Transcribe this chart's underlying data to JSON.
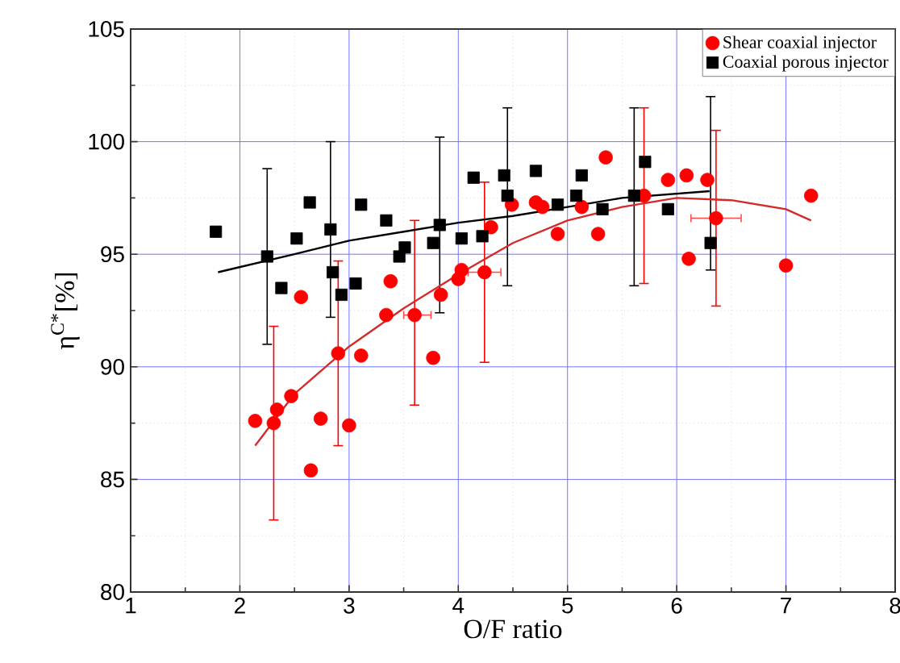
{
  "chart_data": {
    "type": "scatter",
    "xlabel": "O/F ratio",
    "ylabel": "η$^{C*}$[%]",
    "xlim": [
      1,
      8
    ],
    "ylim": [
      80,
      105
    ],
    "xticks": [
      1,
      2,
      3,
      4,
      5,
      6,
      7,
      8
    ],
    "yticks": [
      80,
      85,
      90,
      95,
      100,
      105
    ],
    "grid": true,
    "legend": "top right",
    "series": [
      {
        "name": "Shear coaxial injector",
        "marker": "circle",
        "color": "#ff0000",
        "x": [
          2.14,
          2.31,
          2.34,
          2.47,
          2.56,
          2.65,
          2.74,
          2.9,
          3.0,
          3.11,
          3.34,
          3.38,
          3.6,
          3.77,
          3.84,
          4.0,
          4.03,
          4.24,
          4.3,
          4.49,
          4.71,
          4.77,
          4.91,
          5.13,
          5.28,
          5.35,
          5.7,
          5.92,
          6.09,
          6.11,
          6.28,
          6.36,
          7.0,
          7.23
        ],
        "values": [
          87.6,
          87.5,
          88.1,
          88.7,
          93.1,
          85.4,
          87.7,
          90.6,
          87.4,
          90.5,
          92.3,
          93.8,
          92.3,
          90.4,
          93.2,
          93.9,
          94.3,
          94.2,
          96.2,
          97.2,
          97.3,
          97.1,
          95.9,
          97.1,
          95.9,
          99.3,
          97.6,
          98.3,
          98.5,
          94.8,
          98.3,
          96.6,
          94.5,
          97.6
        ],
        "errors": [
          null,
          [
            83.2,
            91.8
          ],
          null,
          null,
          null,
          null,
          null,
          [
            86.5,
            94.7
          ],
          null,
          null,
          null,
          null,
          [
            88.3,
            96.5
          ],
          null,
          null,
          null,
          null,
          [
            90.2,
            98.2
          ],
          null,
          null,
          null,
          null,
          null,
          null,
          null,
          null,
          [
            93.7,
            101.5
          ],
          null,
          null,
          null,
          null,
          [
            92.7,
            100.5
          ],
          null,
          null
        ],
        "xerrors": [
          null,
          null,
          null,
          null,
          null,
          null,
          null,
          null,
          null,
          null,
          null,
          null,
          [
            3.5,
            3.75
          ],
          null,
          null,
          null,
          null,
          [
            4.09,
            4.39
          ],
          null,
          null,
          null,
          null,
          null,
          null,
          null,
          null,
          null,
          null,
          null,
          null,
          null,
          [
            6.13,
            6.59
          ],
          null,
          null
        ]
      },
      {
        "name": "Coaxial porous injector",
        "marker": "square",
        "color": "#000000",
        "x": [
          1.78,
          2.25,
          2.38,
          2.52,
          2.64,
          2.83,
          2.85,
          2.93,
          3.06,
          3.11,
          3.34,
          3.46,
          3.51,
          3.77,
          3.83,
          4.03,
          4.14,
          4.22,
          4.42,
          4.45,
          4.71,
          4.91,
          5.08,
          5.13,
          5.32,
          5.61,
          5.71,
          5.92,
          6.31
        ],
        "values": [
          96.0,
          94.9,
          93.5,
          95.7,
          97.3,
          96.1,
          94.2,
          93.2,
          93.7,
          97.2,
          96.5,
          94.9,
          95.3,
          95.5,
          96.3,
          95.7,
          98.4,
          95.8,
          98.5,
          97.6,
          98.7,
          97.2,
          97.6,
          98.5,
          97.0,
          97.6,
          99.1,
          97.0,
          95.5
        ],
        "errors": [
          null,
          [
            91.0,
            98.8
          ],
          null,
          null,
          null,
          [
            92.2,
            100.0
          ],
          null,
          null,
          null,
          null,
          null,
          null,
          null,
          null,
          [
            92.4,
            100.2
          ],
          null,
          null,
          null,
          null,
          [
            93.6,
            101.5
          ],
          null,
          null,
          null,
          null,
          null,
          [
            93.6,
            101.5
          ],
          null,
          null,
          [
            94.3,
            102.0
          ]
        ]
      },
      {
        "type": "line",
        "marker": "none",
        "color": "#d42a2a",
        "x": [
          2.14,
          2.5,
          3.0,
          3.5,
          4.0,
          4.5,
          5.0,
          5.5,
          6.0,
          6.5,
          7.0,
          7.23
        ],
        "values": [
          86.5,
          88.8,
          90.9,
          92.6,
          94.1,
          95.5,
          96.5,
          97.1,
          97.5,
          97.4,
          97.0,
          96.5
        ]
      },
      {
        "type": "line",
        "marker": "none",
        "color": "#000000",
        "x": [
          1.8,
          2.5,
          3.0,
          3.5,
          4.0,
          4.5,
          5.0,
          5.5,
          6.3
        ],
        "values": [
          94.2,
          95.0,
          95.6,
          96.0,
          96.4,
          96.7,
          97.1,
          97.5,
          97.8
        ]
      }
    ]
  }
}
